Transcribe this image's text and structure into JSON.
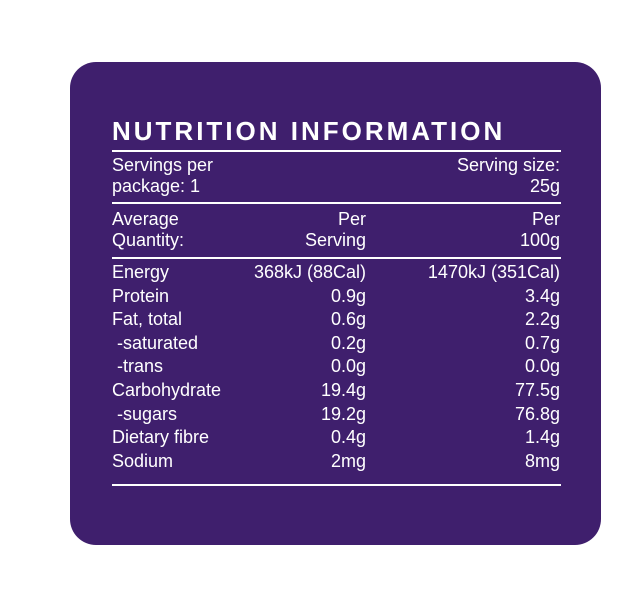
{
  "title": "NUTRITION INFORMATION",
  "servings": {
    "per_package": [
      "Servings per",
      "package: 1"
    ],
    "serving_size": [
      "Serving size:",
      "25g"
    ]
  },
  "columns": {
    "label": [
      "Average",
      "Quantity:"
    ],
    "per_serving": [
      "Per",
      "Serving"
    ],
    "per_100g": [
      "Per",
      "100g"
    ]
  },
  "rows": [
    [
      "Energy",
      "368kJ (88Cal)",
      "1470kJ (351Cal)"
    ],
    [
      "Protein",
      "0.9g",
      "3.4g"
    ],
    [
      "Fat, total",
      "0.6g",
      "2.2g"
    ],
    [
      "-saturated",
      "0.2g",
      "0.7g"
    ],
    [
      "-trans",
      "0.0g",
      "0.0g"
    ],
    [
      "Carbohydrate",
      "19.4g",
      "77.5g"
    ],
    [
      "-sugars",
      "19.2g",
      "76.8g"
    ],
    [
      "Dietary fibre",
      "0.4g",
      "1.4g"
    ],
    [
      "Sodium",
      "2mg",
      "8mg"
    ]
  ]
}
